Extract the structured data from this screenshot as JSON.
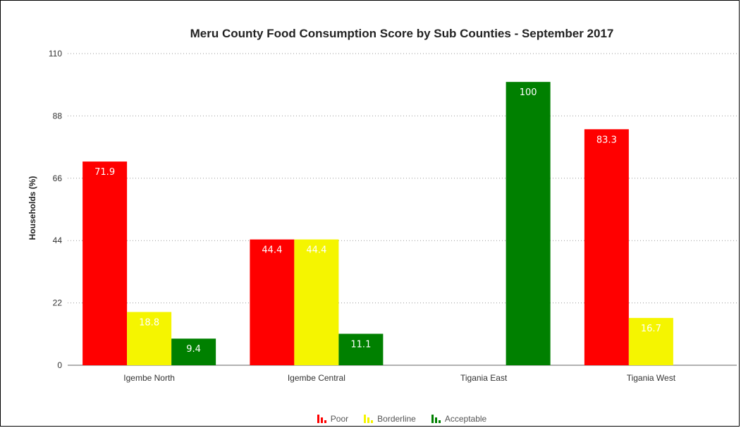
{
  "chart_data": {
    "type": "bar",
    "title": "Meru County Food Consumption Score by Sub Counties - September 2017",
    "ylabel": "Households (%)",
    "xlabel": "",
    "ylim": [
      0,
      110
    ],
    "yticks": [
      "0",
      "22",
      "44",
      "66",
      "88",
      "110"
    ],
    "grid": true,
    "legend_position": "bottom",
    "categories": [
      "Igembe North",
      "Igembe Central",
      "Tigania East",
      "Tigania West"
    ],
    "series": [
      {
        "name": "Poor",
        "color": "#ff0000",
        "label_color": "#ffffff",
        "values": [
          71.9,
          44.4,
          null,
          83.3
        ],
        "labels": [
          "71.9",
          "44.4",
          "",
          "83.3"
        ]
      },
      {
        "name": "Borderline",
        "color": "#f5f500",
        "label_color": "#ffffff",
        "values": [
          18.8,
          44.4,
          null,
          16.7
        ],
        "labels": [
          "18.8",
          "44.4",
          "",
          "16.7"
        ]
      },
      {
        "name": "Acceptable",
        "color": "#008000",
        "label_color": "#ffffff",
        "values": [
          9.4,
          11.1,
          100,
          null
        ],
        "labels": [
          "9.4",
          "11.1",
          "100",
          ""
        ]
      }
    ]
  }
}
